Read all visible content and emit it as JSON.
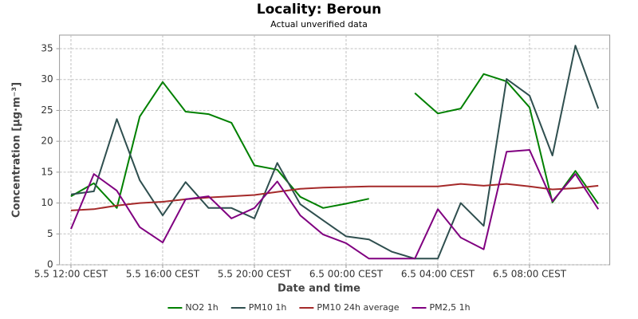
{
  "chart_data": {
    "type": "line",
    "title": "Locality: Beroun",
    "subtitle": "Actual unverified data",
    "x_label": "Date and time",
    "y_label": "Concentration [µg·m⁻³]",
    "categories": [
      "5.5 12:00 CEST",
      null,
      null,
      null,
      "5.5 16:00 CEST",
      null,
      null,
      null,
      "5.5 20:00 CEST",
      null,
      null,
      null,
      "6.5 00:00 CEST",
      null,
      null,
      null,
      "6.5 04:00 CEST",
      null,
      null,
      null,
      "6.5 08:00 CEST",
      null,
      null,
      null
    ],
    "ylim": [
      0,
      37.2
    ],
    "yticks": [
      0,
      5,
      10,
      15,
      20,
      25,
      30,
      35
    ],
    "grid": true,
    "legend": "bottom",
    "series": [
      {
        "name": "NO2 1h",
        "color": "#008000",
        "values": [
          11.1,
          13.2,
          9.2,
          24.0,
          29.6,
          24.8,
          24.4,
          23.0,
          16.1,
          15.4,
          11.0,
          9.2,
          9.9,
          10.7,
          null,
          27.8,
          24.5,
          25.3,
          30.9,
          29.7,
          25.5,
          10.1,
          15.2,
          9.9
        ]
      },
      {
        "name": "PM10 1h",
        "color": "#2f4f4f",
        "values": [
          11.4,
          11.9,
          23.6,
          13.7,
          8.0,
          13.4,
          9.2,
          9.2,
          7.5,
          16.5,
          9.8,
          7.2,
          4.6,
          4.1,
          2.1,
          1.0,
          1.0,
          10.0,
          6.3,
          30.1,
          27.4,
          17.7,
          35.5,
          25.3
        ]
      },
      {
        "name": "PM10 24h average",
        "color": "#a52a2a",
        "values": [
          8.8,
          9.0,
          9.6,
          10.0,
          10.2,
          10.6,
          10.9,
          11.1,
          11.3,
          11.8,
          12.3,
          12.5,
          12.6,
          12.7,
          12.7,
          12.7,
          12.7,
          13.1,
          12.8,
          13.1,
          12.7,
          12.2,
          12.4,
          12.8
        ]
      },
      {
        "name": "PM2,5 1h",
        "color": "#800080",
        "values": [
          5.8,
          14.7,
          12.0,
          6.1,
          3.6,
          10.6,
          11.1,
          7.5,
          9.2,
          13.5,
          8.0,
          4.9,
          3.5,
          1.0,
          1.0,
          1.0,
          9.0,
          4.4,
          2.5,
          18.3,
          18.6,
          10.3,
          14.7,
          9.0
        ]
      }
    ]
  }
}
